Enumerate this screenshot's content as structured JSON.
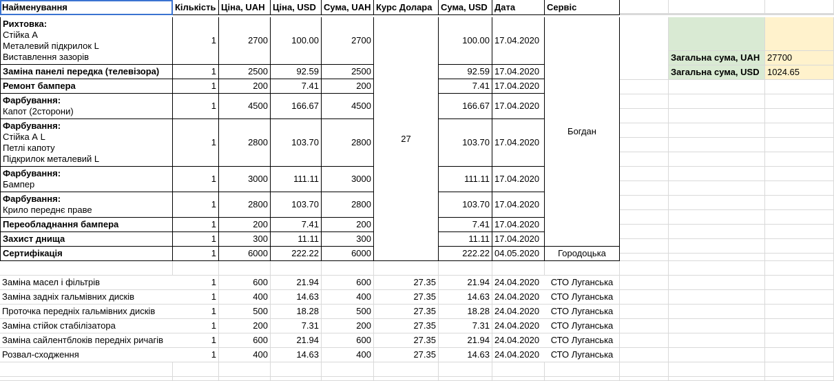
{
  "headers": [
    "Найменування",
    "Кількість",
    "Ціна, UAH",
    "Ціна, USD",
    "Сума, UAH",
    "Курс Долара",
    "Сума, USD",
    "Дата",
    "Сервіс"
  ],
  "rows": [
    {
      "title": "Рихтовка:",
      "details": [
        "Стійка А",
        "Металевий підкрилок L",
        "Виставлення зазорів"
      ],
      "qty": "1",
      "uah": "2700",
      "usd": "100.00",
      "sum_uah": "2700",
      "sum_usd": "100.00",
      "date": "17.04.2020"
    },
    {
      "title": "Заміна панелі передка (телевізора)",
      "details": [],
      "qty": "1",
      "uah": "2500",
      "usd": "92.59",
      "sum_uah": "2500",
      "sum_usd": "92.59",
      "date": "17.04.2020"
    },
    {
      "title": "Ремонт бампера",
      "details": [],
      "qty": "1",
      "uah": "200",
      "usd": "7.41",
      "sum_uah": "200",
      "sum_usd": "7.41",
      "date": "17.04.2020"
    },
    {
      "title": "Фарбування:",
      "details": [
        "Капот (2сторони)"
      ],
      "qty": "1",
      "uah": "4500",
      "usd": "166.67",
      "sum_uah": "4500",
      "sum_usd": "166.67",
      "date": "17.04.2020"
    },
    {
      "title": "Фарбування:",
      "details": [
        "Стійка А L",
        "Петлі капоту",
        "Підкрилок металевий L"
      ],
      "qty": "1",
      "uah": "2800",
      "usd": "103.70",
      "sum_uah": "2800",
      "sum_usd": "103.70",
      "date": "17.04.2020"
    },
    {
      "title": "Фарбування:",
      "details": [
        "Бампер"
      ],
      "qty": "1",
      "uah": "3000",
      "usd": "111.11",
      "sum_uah": "3000",
      "sum_usd": "111.11",
      "date": "17.04.2020"
    },
    {
      "title": "Фарбування:",
      "details": [
        "Крило переднє праве"
      ],
      "qty": "1",
      "uah": "2800",
      "usd": "103.70",
      "sum_uah": "2800",
      "sum_usd": "103.70",
      "date": "17.04.2020"
    },
    {
      "title": "Переобладнання бампера",
      "details": [],
      "qty": "1",
      "uah": "200",
      "usd": "7.41",
      "sum_uah": "200",
      "sum_usd": "7.41",
      "date": "17.04.2020"
    },
    {
      "title": "Захист днища",
      "details": [],
      "qty": "1",
      "uah": "300",
      "usd": "11.11",
      "sum_uah": "300",
      "sum_usd": "11.11",
      "date": "17.04.2020"
    },
    {
      "title": "Сертифікація",
      "details": [],
      "qty": "1",
      "uah": "6000",
      "usd": "222.22",
      "sum_uah": "6000",
      "sum_usd": "222.22",
      "date": "04.05.2020"
    }
  ],
  "merged_rate": "27",
  "service_bogdan": "Богдан",
  "service_gorodotska": "Городоцька",
  "lower_rows": [
    {
      "name": "Заміна масел і фільтрів",
      "qty": "1",
      "uah": "600",
      "usd": "21.94",
      "sum_uah": "600",
      "rate": "27.35",
      "sum_usd": "21.94",
      "date": "24.04.2020",
      "service": "СТО Луганська"
    },
    {
      "name": "Заміна задніх гальмівних дисків",
      "qty": "1",
      "uah": "400",
      "usd": "14.63",
      "sum_uah": "400",
      "rate": "27.35",
      "sum_usd": "14.63",
      "date": "24.04.2020",
      "service": "СТО Луганська"
    },
    {
      "name": "Проточка передніх гальмівних дисків",
      "qty": "1",
      "uah": "500",
      "usd": "18.28",
      "sum_uah": "500",
      "rate": "27.35",
      "sum_usd": "18.28",
      "date": "24.04.2020",
      "service": "СТО Луганська"
    },
    {
      "name": "Заміна стійок стабілізатора",
      "qty": "1",
      "uah": "200",
      "usd": "7.31",
      "sum_uah": "200",
      "rate": "27.35",
      "sum_usd": "7.31",
      "date": "24.04.2020",
      "service": "СТО Луганська"
    },
    {
      "name": "Заміна сайлентблоків передніх ричагів",
      "qty": "1",
      "uah": "600",
      "usd": "21.94",
      "sum_uah": "600",
      "rate": "27.35",
      "sum_usd": "21.94",
      "date": "24.04.2020",
      "service": "СТО Луганська"
    },
    {
      "name": "Розвал-сходження",
      "qty": "1",
      "uah": "400",
      "usd": "14.63",
      "sum_uah": "400",
      "rate": "27.35",
      "sum_usd": "14.63",
      "date": "24.04.2020",
      "service": "СТО Луганська"
    }
  ],
  "totals": {
    "uah_label": "Загальна сума, UAH",
    "uah_value": "27700",
    "usd_label": "Загальна сума, USD",
    "usd_value": "1024.65"
  },
  "colors": {
    "selection": "#3b73d1",
    "totals_label_bg": "#d9ead3",
    "totals_value_bg": "#fff2cc"
  }
}
